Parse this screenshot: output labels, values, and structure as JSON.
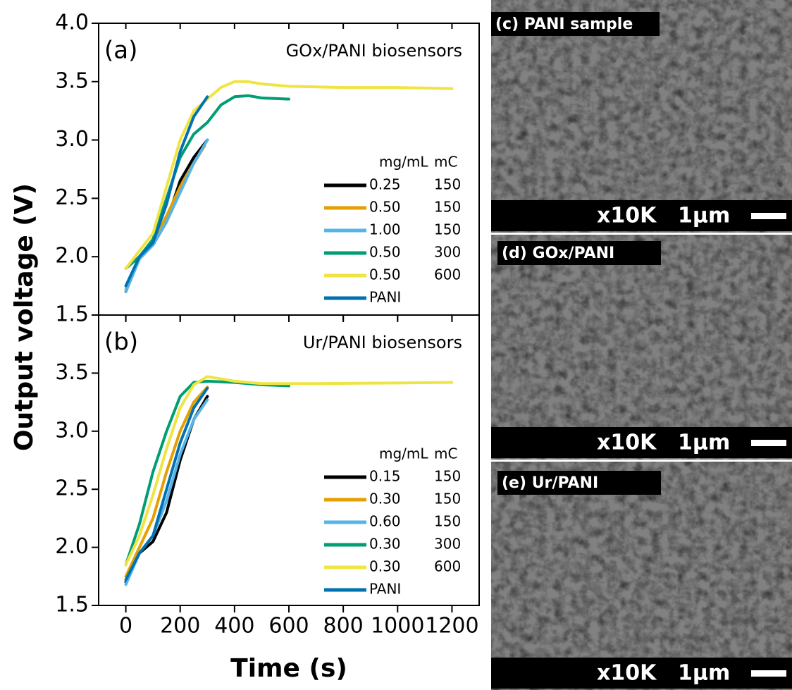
{
  "chart_data": [
    {
      "type": "line",
      "panel_label": "(a)",
      "annotation": "GOx/PANI biosensors",
      "ylabel": "Output voltage (V)",
      "xlim": [
        -100,
        1300
      ],
      "ylim": [
        1.5,
        4.0
      ],
      "yticks": [
        1.5,
        {
          "value": 2,
          "label": "2.0"
        },
        2.5,
        {
          "value": 3,
          "label": "3.0"
        },
        3.5,
        {
          "value": 4,
          "label": "4.0"
        }
      ],
      "legend_header": [
        "mg/mL",
        "mC"
      ],
      "series": [
        {
          "name": "0.25",
          "charge": "150",
          "color": "#000000",
          "x": [
            0,
            50,
            100,
            150,
            200,
            250,
            300
          ],
          "values": [
            1.7,
            2.0,
            2.1,
            2.3,
            2.65,
            2.85,
            3.0
          ]
        },
        {
          "name": "0.50",
          "charge": "150",
          "color": "#e69f00",
          "x": [
            0,
            50,
            100,
            150,
            200,
            250,
            290
          ],
          "values": [
            1.72,
            2.0,
            2.12,
            2.35,
            2.6,
            2.8,
            2.95
          ]
        },
        {
          "name": "1.00",
          "charge": "150",
          "color": "#56b4e9",
          "x": [
            0,
            50,
            100,
            150,
            200,
            250,
            300
          ],
          "values": [
            1.7,
            1.98,
            2.1,
            2.3,
            2.55,
            2.8,
            3.0
          ]
        },
        {
          "name": "0.50",
          "charge": "300",
          "color": "#009e73",
          "x": [
            0,
            50,
            100,
            150,
            200,
            250,
            300,
            350,
            400,
            450,
            500,
            600
          ],
          "values": [
            1.9,
            2.0,
            2.15,
            2.5,
            2.85,
            3.05,
            3.15,
            3.3,
            3.37,
            3.38,
            3.36,
            3.35
          ]
        },
        {
          "name": "0.50",
          "charge": "600",
          "color": "#f0e442",
          "x": [
            0,
            50,
            100,
            150,
            200,
            250,
            300,
            350,
            400,
            450,
            500,
            600,
            800,
            1000,
            1200
          ],
          "values": [
            1.9,
            2.05,
            2.2,
            2.6,
            3.0,
            3.25,
            3.35,
            3.45,
            3.5,
            3.5,
            3.48,
            3.46,
            3.45,
            3.45,
            3.44
          ]
        },
        {
          "name": "PANI",
          "color": "#0072b2",
          "x": [
            0,
            50,
            100,
            150,
            200,
            250,
            300
          ],
          "values": [
            1.75,
            2.0,
            2.12,
            2.45,
            2.9,
            3.2,
            3.37
          ]
        }
      ]
    },
    {
      "type": "line",
      "panel_label": "(b)",
      "annotation": "Ur/PANI biosensors",
      "xlabel": "Time (s)",
      "xlim": [
        -100,
        1300
      ],
      "ylim": [
        1.5,
        4.0
      ],
      "xticks": [
        0,
        200,
        400,
        600,
        800,
        1000,
        1200
      ],
      "yticks": [
        1.5,
        {
          "value": 2,
          "label": "2.0"
        },
        2.5,
        {
          "value": 3,
          "label": "3.0"
        },
        3.5
      ],
      "legend_header": [
        "mg/mL",
        "mC"
      ],
      "series": [
        {
          "name": "0.15",
          "charge": "150",
          "color": "#000000",
          "x": [
            0,
            50,
            100,
            150,
            200,
            250,
            300
          ],
          "values": [
            1.7,
            1.95,
            2.05,
            2.3,
            2.75,
            3.1,
            3.3
          ]
        },
        {
          "name": "0.30",
          "charge": "150",
          "color": "#e69f00",
          "x": [
            0,
            50,
            100,
            150,
            200,
            250,
            300
          ],
          "values": [
            1.75,
            2.0,
            2.25,
            2.65,
            3.0,
            3.25,
            3.38
          ]
        },
        {
          "name": "0.60",
          "charge": "150",
          "color": "#56b4e9",
          "x": [
            0,
            50,
            100,
            150,
            200,
            250,
            300
          ],
          "values": [
            1.68,
            1.95,
            2.1,
            2.4,
            2.8,
            3.1,
            3.27
          ]
        },
        {
          "name": "0.30",
          "charge": "300",
          "color": "#009e73",
          "x": [
            0,
            50,
            100,
            150,
            200,
            250,
            300,
            400,
            500,
            600
          ],
          "values": [
            1.85,
            2.2,
            2.65,
            3.0,
            3.3,
            3.42,
            3.43,
            3.42,
            3.4,
            3.39
          ]
        },
        {
          "name": "0.30",
          "charge": "600",
          "color": "#f0e442",
          "x": [
            0,
            50,
            100,
            150,
            200,
            250,
            300,
            400,
            500,
            700,
            1000,
            1200
          ],
          "values": [
            1.85,
            2.1,
            2.45,
            2.85,
            3.2,
            3.4,
            3.47,
            3.43,
            3.41,
            3.41,
            3.415,
            3.42
          ]
        },
        {
          "name": "PANI",
          "color": "#0072b2",
          "x": [
            0,
            50,
            100,
            150,
            200,
            250,
            300
          ],
          "values": [
            1.72,
            1.95,
            2.1,
            2.5,
            2.9,
            3.2,
            3.37
          ]
        }
      ]
    }
  ],
  "sem_panels": [
    {
      "label": "(c) PANI sample",
      "magnification": "x10K",
      "scale": "1μm"
    },
    {
      "label": "(d) GOx/PANI",
      "magnification": "x10K",
      "scale": "1μm"
    },
    {
      "label": "(e) Ur/PANI",
      "magnification": "x10K",
      "scale": "1μm"
    }
  ]
}
